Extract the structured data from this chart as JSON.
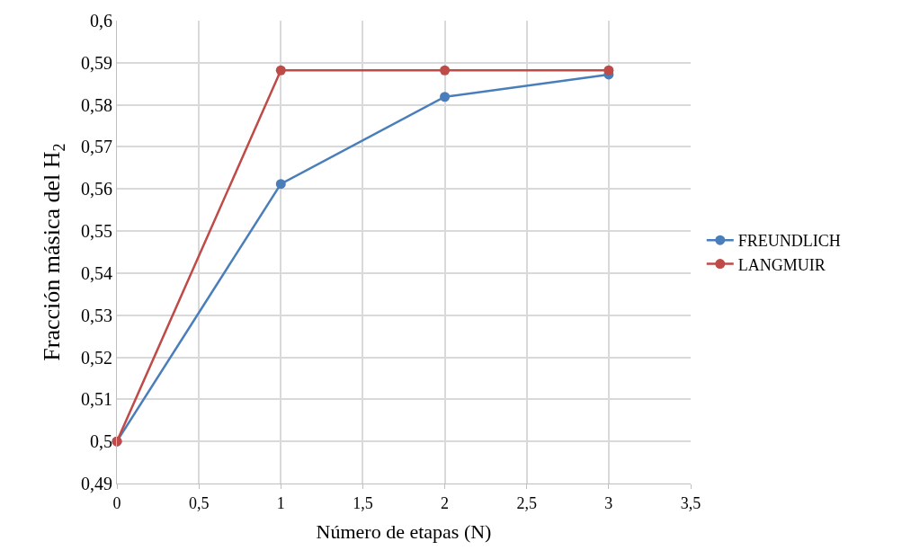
{
  "chart_data": {
    "type": "line",
    "xlabel": "Número de etapas (N)",
    "ylabel": "Fracción másica del H$_{2}$",
    "x": [
      0,
      1,
      2,
      3
    ],
    "series": [
      {
        "name": "FREUNDLICH",
        "color": "#4a7ebb",
        "values": [
          0.5,
          0.5612,
          0.5819,
          0.5872
        ]
      },
      {
        "name": "LANGMUIR",
        "color": "#be4b48",
        "values": [
          0.5,
          0.5882,
          0.5882,
          0.5882
        ]
      }
    ],
    "xlim": [
      0,
      3.5
    ],
    "xticks": [
      0,
      {
        "value": 0.5,
        "label": "0,5"
      },
      1,
      {
        "value": 1.5,
        "label": "1,5"
      },
      2,
      {
        "value": 2.5,
        "label": "2,5"
      },
      3,
      {
        "value": 3.5,
        "label": "3,5"
      }
    ],
    "ylim": [
      0.49,
      0.6
    ],
    "yticks": [
      {
        "value": 0.49,
        "label": "0,49"
      },
      {
        "value": 0.5,
        "label": "0,5"
      },
      {
        "value": 0.51,
        "label": "0,51"
      },
      {
        "value": 0.52,
        "label": "0,52"
      },
      {
        "value": 0.53,
        "label": "0,53"
      },
      {
        "value": 0.54,
        "label": "0,54"
      },
      {
        "value": 0.55,
        "label": "0,55"
      },
      {
        "value": 0.56,
        "label": "0,56"
      },
      {
        "value": 0.57,
        "label": "0,57"
      },
      {
        "value": 0.58,
        "label": "0,58"
      },
      {
        "value": 0.59,
        "label": "0,59"
      },
      {
        "value": 0.6,
        "label": "0,6"
      }
    ],
    "grid": true,
    "legend": "right",
    "marker": "circle",
    "line_style": "solid"
  }
}
